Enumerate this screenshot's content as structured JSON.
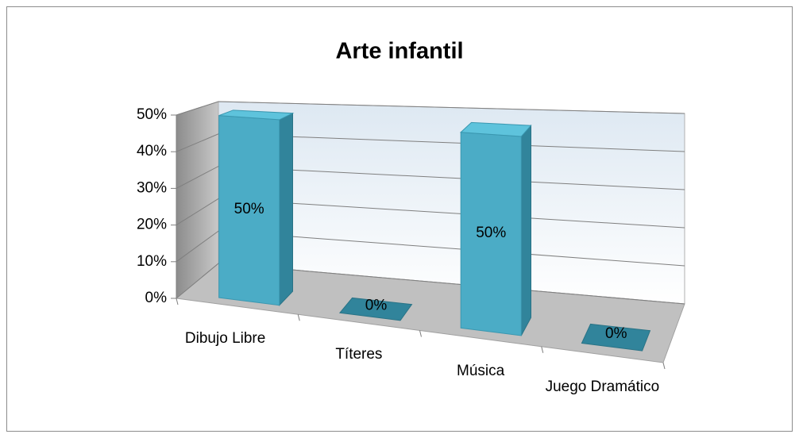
{
  "chart_data": {
    "type": "bar3d",
    "title": "Arte infantil",
    "categories": [
      "Dibujo Libre",
      "Títeres",
      "Música",
      "Juego Dramático"
    ],
    "values": [
      50,
      0,
      50,
      0
    ],
    "value_labels": [
      "50%",
      "0%",
      "50%",
      "0%"
    ],
    "color": "#4bacc6",
    "ylim": [
      0,
      50
    ],
    "yticks": [
      {
        "value": 0,
        "label": "0%"
      },
      {
        "value": 10,
        "label": "10%"
      },
      {
        "value": 20,
        "label": "20%"
      },
      {
        "value": 30,
        "label": "30%"
      },
      {
        "value": 40,
        "label": "40%"
      },
      {
        "value": 50,
        "label": "50%"
      }
    ],
    "grid": true
  }
}
